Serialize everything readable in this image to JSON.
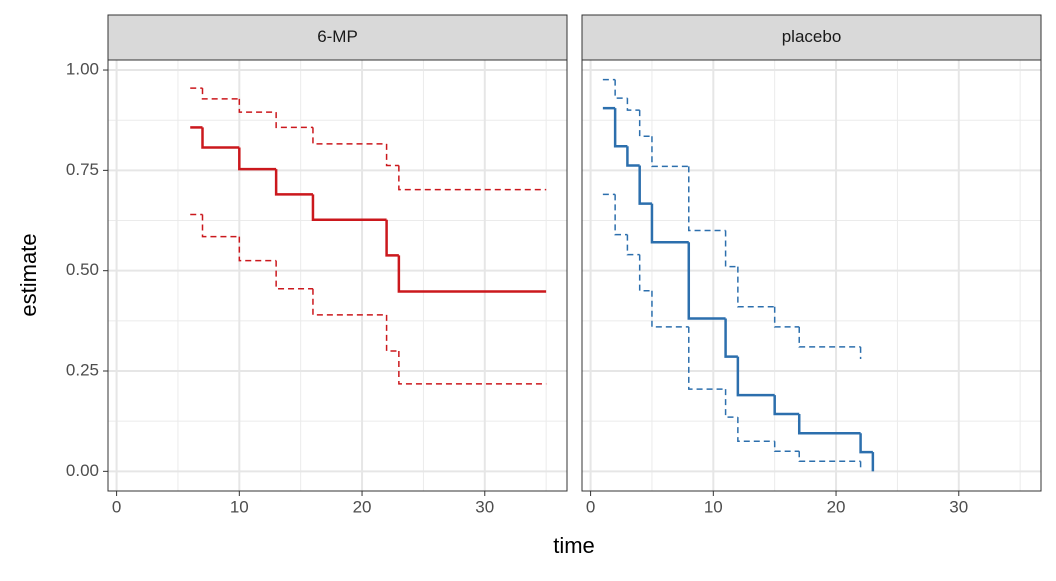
{
  "chart_data": {
    "type": "step",
    "xlabel": "time",
    "ylabel": "estimate",
    "xlim": [
      -0.7,
      36.7
    ],
    "xticks": [
      0,
      10,
      20,
      30
    ],
    "x_minor_grid": [
      5,
      15,
      25,
      35
    ],
    "ylim": [
      -0.049,
      1.025
    ],
    "yticks": [
      {
        "value": 0,
        "label": "0.00"
      },
      {
        "value": 0.25,
        "label": "0.25"
      },
      {
        "value": 0.5,
        "label": "0.50"
      },
      {
        "value": 0.75,
        "label": "0.75"
      },
      {
        "value": 1,
        "label": "1.00"
      }
    ],
    "y_minor_grid": [
      0.125,
      0.375,
      0.625,
      0.875
    ],
    "grid": true,
    "facets": [
      {
        "title": "6-MP",
        "color": "#cb181d",
        "x": [
          6,
          7,
          10,
          13,
          16,
          22,
          23,
          35
        ],
        "estimate": [
          0.857,
          0.807,
          0.753,
          0.69,
          0.627,
          0.538,
          0.448,
          0.448
        ],
        "upper": [
          0.955,
          0.928,
          0.895,
          0.857,
          0.816,
          0.762,
          0.702,
          0.702
        ],
        "lower": [
          0.64,
          0.585,
          0.525,
          0.455,
          0.39,
          0.3,
          0.218,
          0.218
        ]
      },
      {
        "title": "placebo",
        "color": "#2c6fad",
        "x": [
          1,
          2,
          3,
          4,
          5,
          8,
          11,
          12,
          15,
          17,
          22,
          23
        ],
        "estimate": [
          0.905,
          0.81,
          0.762,
          0.667,
          0.571,
          0.381,
          0.286,
          0.19,
          0.143,
          0.095,
          0.048,
          0
        ],
        "upper": [
          0.976,
          0.93,
          0.9,
          0.835,
          0.76,
          0.6,
          0.51,
          0.41,
          0.36,
          0.31,
          0.28,
          null
        ],
        "lower": [
          0.69,
          0.59,
          0.54,
          0.45,
          0.36,
          0.205,
          0.135,
          0.075,
          0.05,
          0.025,
          0.007,
          null
        ]
      }
    ]
  }
}
